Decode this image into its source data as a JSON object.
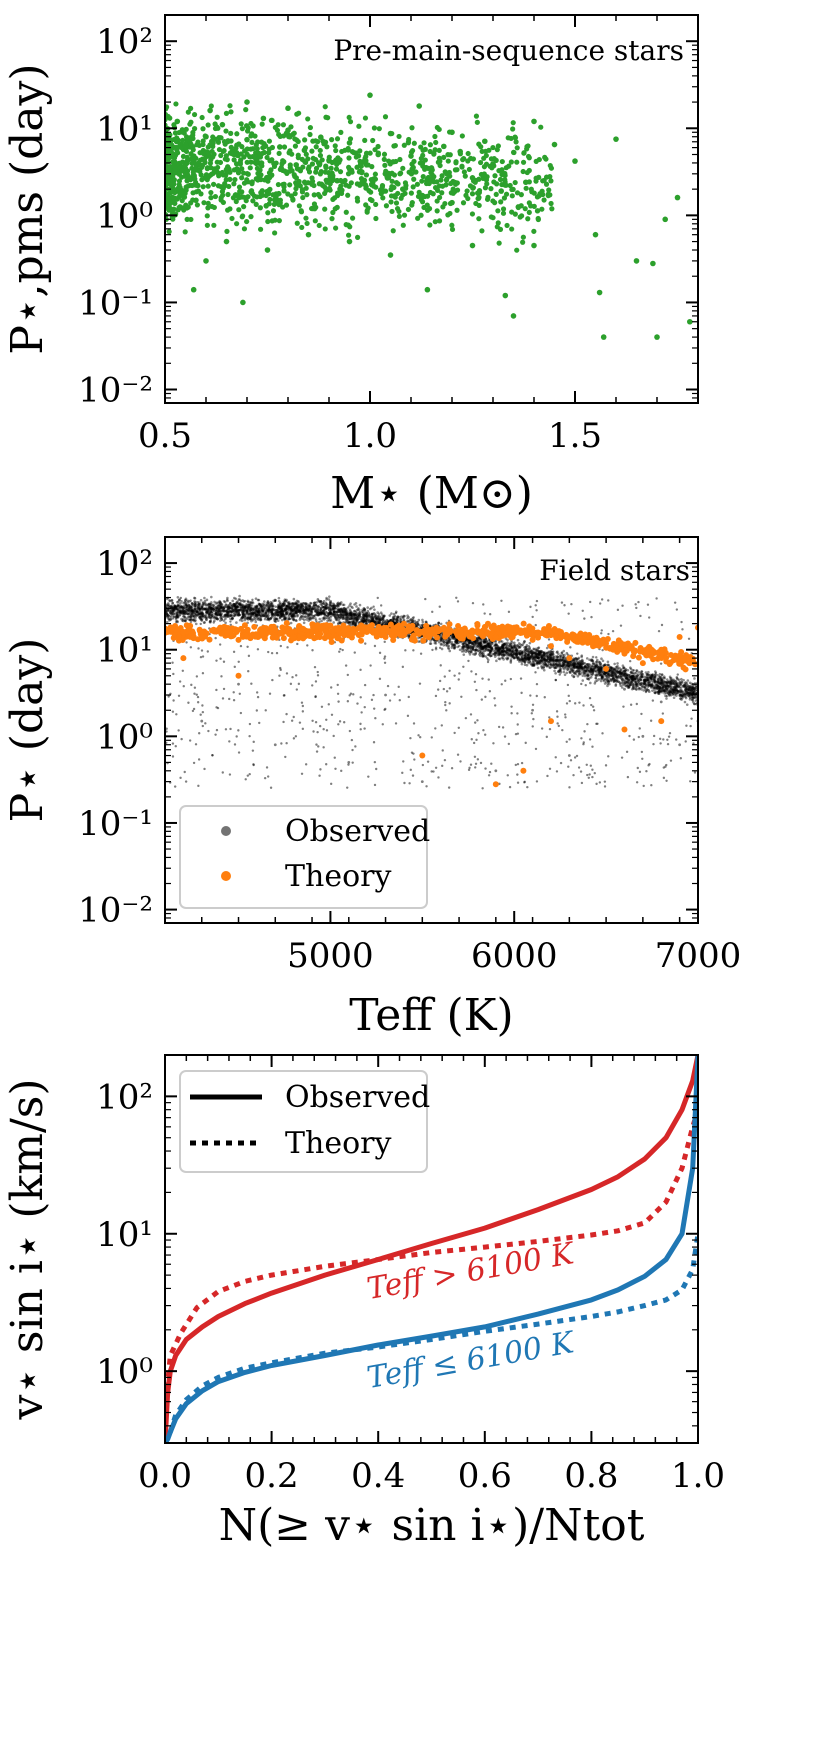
{
  "chart_data": [
    {
      "type": "scatter",
      "title": "",
      "annotation": "Pre-main-sequence stars",
      "xlabel": "M⋆ (M⊙)",
      "ylabel": "P⋆,pms (day)",
      "xscale": "linear",
      "yscale": "log",
      "xlim": [
        0.5,
        1.8
      ],
      "ylim": [
        0.007,
        200
      ],
      "xticks": [
        0.5,
        1.0,
        1.5
      ],
      "xtick_labels": [
        "0.5",
        "1.0",
        "1.5"
      ],
      "yticks": [
        0.01,
        0.1,
        1,
        10,
        100
      ],
      "ytick_labels": [
        "10⁻²",
        "10⁻¹",
        "10⁰",
        "10¹",
        "10²"
      ],
      "series": [
        {
          "name": "Pre-main-sequence stars",
          "color": "#2ca02c",
          "points": [
            [
              0.52,
              4.1
            ],
            [
              0.55,
              6.5
            ],
            [
              0.58,
              2.2
            ],
            [
              0.6,
              8.0
            ],
            [
              0.62,
              3.4
            ],
            [
              0.64,
              11.0
            ],
            [
              0.66,
              5.2
            ],
            [
              0.68,
              1.6
            ],
            [
              0.7,
              7.4
            ],
            [
              0.72,
              4.6
            ],
            [
              0.74,
              13.0
            ],
            [
              0.76,
              2.9
            ],
            [
              0.78,
              6.1
            ],
            [
              0.8,
              9.5
            ],
            [
              0.82,
              3.8
            ],
            [
              0.84,
              5.6
            ],
            [
              0.86,
              1.2
            ],
            [
              0.88,
              7.9
            ],
            [
              0.9,
              4.3
            ],
            [
              0.92,
              2.5
            ],
            [
              0.95,
              6.8
            ],
            [
              0.98,
              3.1
            ],
            [
              1.0,
              24.0
            ],
            [
              1.02,
              5.0
            ],
            [
              1.05,
              8.7
            ],
            [
              1.08,
              2.0
            ],
            [
              1.1,
              4.8
            ],
            [
              1.12,
              18.0
            ],
            [
              1.15,
              3.5
            ],
            [
              1.18,
              6.2
            ],
            [
              1.2,
              1.4
            ],
            [
              1.22,
              5.4
            ],
            [
              1.25,
              2.7
            ],
            [
              1.28,
              7.1
            ],
            [
              1.3,
              3.9
            ],
            [
              1.32,
              1.9
            ],
            [
              1.35,
              0.07
            ],
            [
              1.38,
              2.4
            ],
            [
              1.4,
              0.45
            ],
            [
              1.45,
              6.5
            ],
            [
              1.5,
              4.2
            ],
            [
              1.55,
              0.6
            ],
            [
              1.57,
              0.04
            ],
            [
              1.6,
              7.5
            ],
            [
              1.65,
              0.3
            ],
            [
              1.7,
              0.04
            ],
            [
              1.72,
              0.9
            ],
            [
              1.75,
              1.6
            ],
            [
              1.78,
              0.06
            ],
            [
              0.57,
              0.14
            ],
            [
              0.69,
              0.1
            ],
            [
              0.6,
              0.3
            ],
            [
              0.65,
              0.5
            ],
            [
              0.75,
              0.4
            ],
            [
              0.85,
              0.6
            ],
            [
              0.95,
              0.5
            ],
            [
              1.05,
              0.35
            ],
            [
              1.14,
              0.14
            ],
            [
              1.25,
              0.45
            ],
            [
              1.33,
              0.12
            ],
            [
              0.53,
              12.0
            ],
            [
              0.61,
              16.0
            ],
            [
              0.7,
              20.0
            ],
            [
              0.8,
              17.0
            ],
            [
              1.2,
              9.0
            ],
            [
              1.4,
              12.0
            ],
            [
              1.56,
              0.13
            ],
            [
              1.69,
              0.28
            ]
          ]
        }
      ]
    },
    {
      "type": "scatter",
      "title": "",
      "annotation": "Field stars",
      "xlabel": "Teff (K)",
      "ylabel": "P⋆ (day)",
      "xscale": "linear",
      "yscale": "log",
      "xlim": [
        4100,
        7000
      ],
      "ylim": [
        0.007,
        200
      ],
      "xticks": [
        5000,
        6000,
        7000
      ],
      "xtick_labels": [
        "5000",
        "6000",
        "7000"
      ],
      "yticks": [
        0.01,
        0.1,
        1,
        10,
        100
      ],
      "ytick_labels": [
        "10⁻²",
        "10⁻¹",
        "10⁰",
        "10¹",
        "10²"
      ],
      "legend": {
        "position": "lower-left",
        "entries": [
          "Observed",
          "Theory"
        ]
      },
      "series": [
        {
          "name": "Observed",
          "color": "#000000",
          "points": [
            [
              4200,
              30.0
            ],
            [
              4400,
              32.0
            ],
            [
              4600,
              28.0
            ],
            [
              4800,
              26.0
            ],
            [
              5000,
              27.0
            ],
            [
              5200,
              25.0
            ],
            [
              5400,
              22.0
            ],
            [
              5600,
              18.0
            ],
            [
              5800,
              15.0
            ],
            [
              6000,
              12.0
            ],
            [
              6200,
              8.0
            ],
            [
              6400,
              5.0
            ],
            [
              6600,
              3.5
            ],
            [
              6800,
              2.5
            ],
            [
              7000,
              1.5
            ],
            [
              4300,
              1.5
            ],
            [
              4700,
              0.8
            ],
            [
              5100,
              0.5
            ],
            [
              5500,
              0.3
            ],
            [
              5900,
              0.4
            ],
            [
              6300,
              0.6
            ],
            [
              6700,
              1.0
            ],
            [
              4500,
              4.0
            ],
            [
              5300,
              3.0
            ],
            [
              6100,
              2.0
            ],
            [
              6900,
              0.8
            ]
          ]
        },
        {
          "name": "Theory",
          "color": "#ff7f0e",
          "points": [
            [
              4200,
              16.0
            ],
            [
              4300,
              14.0
            ],
            [
              4400,
              18.0
            ],
            [
              4500,
              13.0
            ],
            [
              4600,
              15.0
            ],
            [
              4700,
              17.0
            ],
            [
              4800,
              14.0
            ],
            [
              4900,
              16.0
            ],
            [
              5000,
              19.0
            ],
            [
              5100,
              15.0
            ],
            [
              5200,
              18.0
            ],
            [
              5300,
              14.0
            ],
            [
              5400,
              20.0
            ],
            [
              5500,
              16.0
            ],
            [
              5600,
              17.0
            ],
            [
              5700,
              15.0
            ],
            [
              5800,
              19.0
            ],
            [
              5900,
              14.0
            ],
            [
              6000,
              18.0
            ],
            [
              6100,
              13.0
            ],
            [
              6200,
              11.0
            ],
            [
              6300,
              8.0
            ],
            [
              6400,
              12.0
            ],
            [
              6500,
              6.0
            ],
            [
              6600,
              9.0
            ],
            [
              6700,
              7.0
            ],
            [
              6800,
              10.0
            ],
            [
              6900,
              14.0
            ],
            [
              7000,
              18.0
            ],
            [
              4200,
              8.0
            ],
            [
              4500,
              5.0
            ],
            [
              5500,
              0.6
            ],
            [
              5900,
              0.28
            ],
            [
              6050,
              0.4
            ],
            [
              6200,
              1.5
            ],
            [
              6600,
              1.2
            ],
            [
              6800,
              1.5
            ]
          ]
        }
      ]
    },
    {
      "type": "line",
      "title": "",
      "xlabel": "N(≥ v⋆ sin i⋆)/Ntot",
      "ylabel": "v⋆ sin i⋆ (km/s)",
      "xscale": "linear",
      "yscale": "log",
      "xlim": [
        0.0,
        1.0
      ],
      "ylim": [
        0.3,
        200
      ],
      "xticks": [
        0.0,
        0.2,
        0.4,
        0.6,
        0.8,
        1.0
      ],
      "xtick_labels": [
        "0.0",
        "0.2",
        "0.4",
        "0.6",
        "0.8",
        "1.0"
      ],
      "yticks": [
        1,
        10,
        100
      ],
      "ytick_labels": [
        "10⁰",
        "10¹",
        "10²"
      ],
      "legend": {
        "position": "top-left",
        "entries": [
          "Observed",
          "Theory"
        ]
      },
      "annotations": [
        {
          "text": "Teff > 6100 K",
          "color": "#d62728"
        },
        {
          "text": "Teff ≤ 6100 K",
          "color": "#1f77b4"
        }
      ],
      "series": [
        {
          "name": "Teff > 6100 K Observed",
          "style": "solid",
          "color": "#d62728",
          "x": [
            0.0,
            0.005,
            0.01,
            0.02,
            0.04,
            0.07,
            0.1,
            0.15,
            0.2,
            0.3,
            0.4,
            0.5,
            0.6,
            0.7,
            0.8,
            0.85,
            0.9,
            0.94,
            0.97,
            0.99,
            1.0
          ],
          "y": [
            0.3,
            0.7,
            1.0,
            1.3,
            1.7,
            2.1,
            2.5,
            3.1,
            3.7,
            5.0,
            6.5,
            8.5,
            11.0,
            15.0,
            21.0,
            26.0,
            35.0,
            50.0,
            80.0,
            130.0,
            200.0
          ]
        },
        {
          "name": "Teff > 6100 K Theory",
          "style": "dotted",
          "color": "#d62728",
          "x": [
            0.0,
            0.01,
            0.03,
            0.06,
            0.1,
            0.15,
            0.2,
            0.3,
            0.4,
            0.5,
            0.6,
            0.7,
            0.8,
            0.85,
            0.9,
            0.94,
            0.97,
            0.99,
            1.0
          ],
          "y": [
            0.5,
            1.3,
            1.9,
            2.9,
            3.8,
            4.5,
            5.0,
            5.8,
            6.5,
            7.3,
            8.0,
            8.8,
            9.8,
            10.5,
            12.0,
            17.0,
            30.0,
            60.0,
            80.0
          ]
        },
        {
          "name": "Teff ≤ 6100 K Observed",
          "style": "solid",
          "color": "#1f77b4",
          "x": [
            0.0,
            0.005,
            0.01,
            0.02,
            0.04,
            0.07,
            0.1,
            0.15,
            0.2,
            0.3,
            0.4,
            0.5,
            0.6,
            0.7,
            0.8,
            0.85,
            0.9,
            0.94,
            0.97,
            0.99,
            1.0
          ],
          "y": [
            0.3,
            0.32,
            0.36,
            0.45,
            0.58,
            0.72,
            0.84,
            0.98,
            1.1,
            1.3,
            1.55,
            1.8,
            2.1,
            2.6,
            3.3,
            3.9,
            4.9,
            6.5,
            10.0,
            30.0,
            200.0
          ]
        },
        {
          "name": "Teff ≤ 6100 K Theory",
          "style": "dotted",
          "color": "#1f77b4",
          "x": [
            0.0,
            0.01,
            0.02,
            0.04,
            0.07,
            0.1,
            0.15,
            0.2,
            0.3,
            0.4,
            0.5,
            0.6,
            0.7,
            0.8,
            0.85,
            0.9,
            0.94,
            0.97,
            0.99,
            1.0
          ],
          "y": [
            0.3,
            0.36,
            0.48,
            0.62,
            0.78,
            0.9,
            1.05,
            1.15,
            1.35,
            1.5,
            1.7,
            1.95,
            2.2,
            2.5,
            2.7,
            3.0,
            3.3,
            3.9,
            5.5,
            10.0
          ]
        }
      ]
    }
  ]
}
